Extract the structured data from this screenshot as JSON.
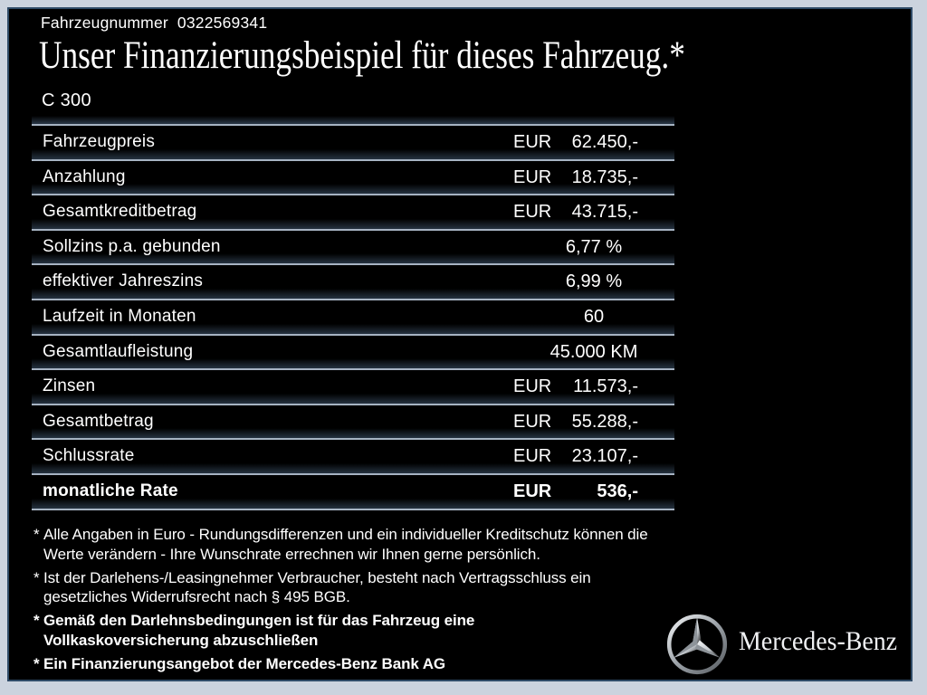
{
  "header": {
    "vehicle_number_label": "Fahrzeugnummer",
    "vehicle_number": "0322569341",
    "title": "Unser Finanzierungsbeispiel für dieses Fahrzeug.*",
    "model": "C 300"
  },
  "table": {
    "rows": [
      {
        "label": "Fahrzeugpreis",
        "currency": "EUR",
        "value": "62.450,-",
        "bold": false
      },
      {
        "label": "Anzahlung",
        "currency": "EUR",
        "value": "18.735,-",
        "bold": false
      },
      {
        "label": "Gesamtkreditbetrag",
        "currency": "EUR",
        "value": "43.715,-",
        "bold": false
      },
      {
        "label": "Sollzins p.a. gebunden",
        "currency": "",
        "value": "6,77 %",
        "bold": false
      },
      {
        "label": "effektiver Jahreszins",
        "currency": "",
        "value": "6,99 %",
        "bold": false
      },
      {
        "label": "Laufzeit in Monaten",
        "currency": "",
        "value": "60",
        "bold": false
      },
      {
        "label": "Gesamtlaufleistung",
        "currency": "",
        "value": "45.000 KM",
        "bold": false
      },
      {
        "label": "Zinsen",
        "currency": "EUR",
        "value": "11.573,-",
        "bold": false
      },
      {
        "label": "Gesamtbetrag",
        "currency": "EUR",
        "value": "55.288,-",
        "bold": false
      },
      {
        "label": "Schlussrate",
        "currency": "EUR",
        "value": "23.107,-",
        "bold": false
      },
      {
        "label": "monatliche Rate",
        "currency": "EUR",
        "value": "536,-",
        "bold": true
      }
    ]
  },
  "footnotes": [
    {
      "marker": "*",
      "bold": false,
      "text": "Alle Angaben in Euro - Rundungsdifferenzen und ein individueller Kreditschutz können die\nWerte verändern - Ihre Wunschrate errechnen wir Ihnen gerne persönlich."
    },
    {
      "marker": "*",
      "bold": false,
      "text": "Ist der Darlehens-/Leasingnehmer Verbraucher, besteht nach Vertragsschluss ein\ngesetzliches  Widerrufsrecht nach § 495 BGB."
    },
    {
      "marker": "*",
      "bold": true,
      "text": "Gemäß den Darlehnsbedingungen ist für das Fahrzeug eine\nVollkaskoversicherung abzuschließen"
    },
    {
      "marker": "*",
      "bold": true,
      "text": "Ein Finanzierungsangebot der Mercedes-Benz Bank AG"
    }
  ],
  "brand": {
    "logo": "mercedes-star-icon",
    "wordmark": "Mercedes-Benz"
  },
  "colors": {
    "background": "#000000",
    "frame": "#cbd3de",
    "frame_line": "#2e4a66",
    "divider": "#a6b3c2",
    "text": "#ffffff"
  }
}
